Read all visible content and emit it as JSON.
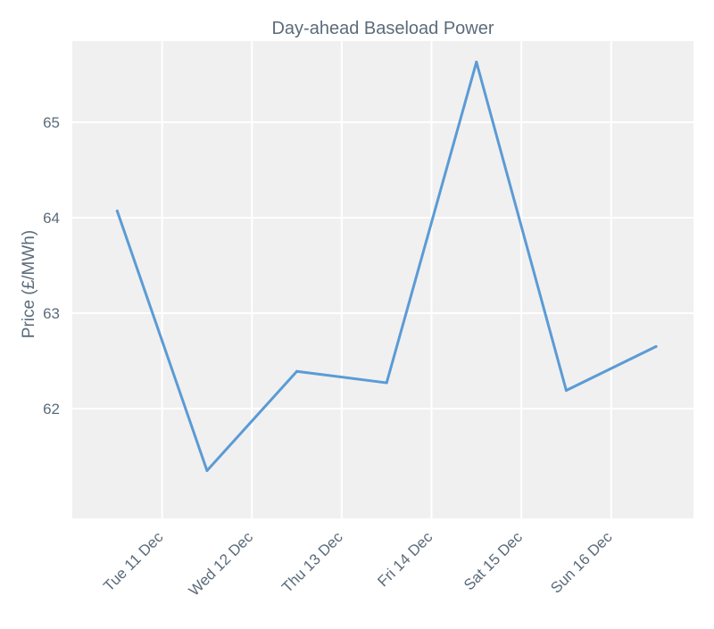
{
  "chart_data": {
    "type": "line",
    "title": "Day-ahead Baseload Power",
    "xlabel": "",
    "ylabel": "Price (£/MWh)",
    "x_ticks": [
      "Tue 11 Dec",
      "Wed 12 Dec",
      "Thu 13 Dec",
      "Fri 14 Dec",
      "Sat 15 Dec",
      "Sun 16 Dec"
    ],
    "y_ticks": [
      62,
      63,
      64,
      65
    ],
    "x": [
      "2018-12-10 12:00",
      "2018-12-11 12:00",
      "2018-12-12 12:00",
      "2018-12-13 12:00",
      "2018-12-14 12:00",
      "2018-12-15 12:00",
      "2018-12-16 12:00"
    ],
    "series": [
      {
        "values": [
          64.07,
          61.35,
          62.39,
          62.27,
          65.63,
          62.19,
          62.65
        ]
      }
    ],
    "xlim": [
      "2018-12-10 00:00",
      "2018-12-16 22:00"
    ],
    "ylim": [
      60.85,
      65.85
    ],
    "grid": true,
    "legend": "none",
    "colors": {
      "line": "#5b9bd5",
      "plot_background": "#f0f0f0",
      "grid": "#ffffff",
      "text": "#5b6b7b"
    }
  }
}
